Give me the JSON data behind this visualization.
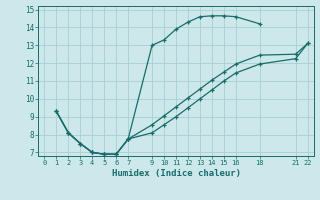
{
  "xlabel": "Humidex (Indice chaleur)",
  "bg_color": "#cce8ea",
  "grid_color": "#aacfd2",
  "line_color": "#1a6b6b",
  "xlim": [
    -0.5,
    22.5
  ],
  "ylim": [
    6.8,
    15.2
  ],
  "xticks": [
    0,
    1,
    2,
    3,
    4,
    5,
    6,
    7,
    9,
    10,
    11,
    12,
    13,
    14,
    15,
    16,
    18,
    21,
    22
  ],
  "yticks": [
    7,
    8,
    9,
    10,
    11,
    12,
    13,
    14,
    15
  ],
  "line1_x": [
    1,
    2,
    3,
    4,
    5,
    6,
    7,
    9,
    10,
    11,
    12,
    13,
    14,
    15,
    16,
    18
  ],
  "line1_y": [
    9.3,
    8.1,
    7.5,
    7.0,
    6.9,
    6.9,
    7.75,
    13.0,
    13.3,
    13.9,
    14.3,
    14.6,
    14.65,
    14.65,
    14.6,
    14.2
  ],
  "line2_x": [
    1,
    2,
    3,
    4,
    5,
    6,
    7,
    9,
    10,
    11,
    12,
    13,
    14,
    15,
    16,
    18,
    21,
    22
  ],
  "line2_y": [
    9.3,
    8.1,
    7.5,
    7.0,
    6.9,
    6.9,
    7.75,
    8.55,
    9.05,
    9.55,
    10.05,
    10.55,
    11.05,
    11.5,
    11.95,
    12.45,
    12.5,
    13.1
  ],
  "line3_x": [
    1,
    2,
    3,
    4,
    5,
    6,
    7,
    9,
    10,
    11,
    12,
    13,
    14,
    15,
    16,
    18,
    21,
    22
  ],
  "line3_y": [
    9.3,
    8.1,
    7.5,
    7.0,
    6.9,
    6.9,
    7.75,
    8.1,
    8.55,
    9.0,
    9.5,
    10.0,
    10.5,
    11.0,
    11.45,
    11.95,
    12.25,
    13.1
  ]
}
